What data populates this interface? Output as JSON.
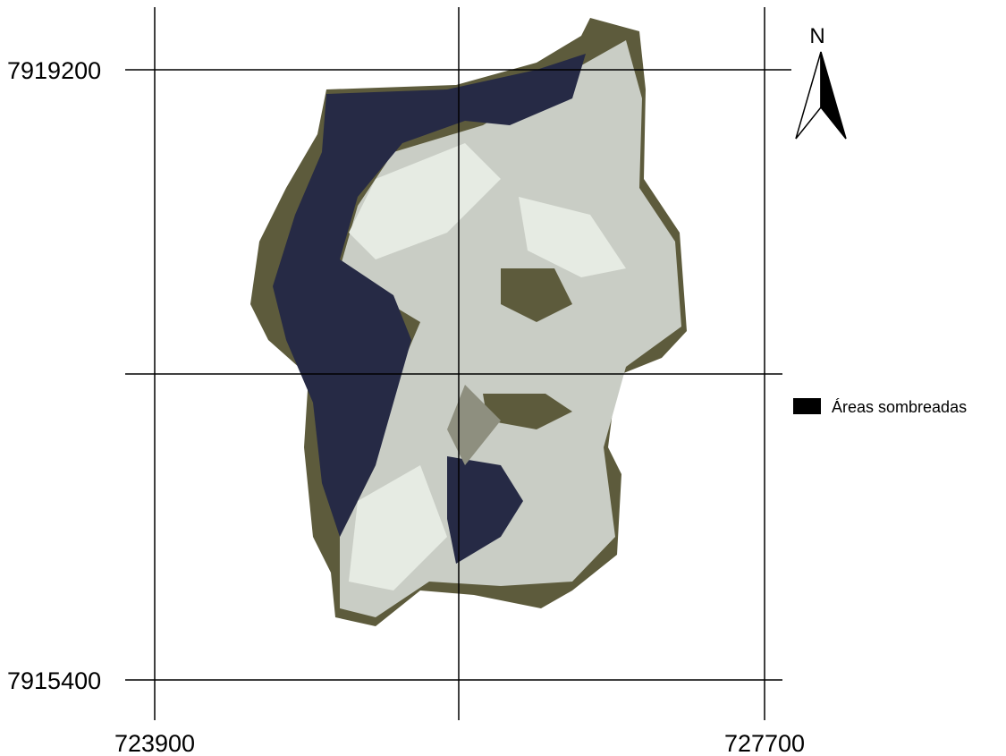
{
  "map": {
    "y_labels": [
      "7919200",
      "7915400"
    ],
    "x_labels": [
      "723900",
      "727700"
    ],
    "north_label": "N",
    "legend": {
      "label": "Áreas sombreadas"
    }
  }
}
